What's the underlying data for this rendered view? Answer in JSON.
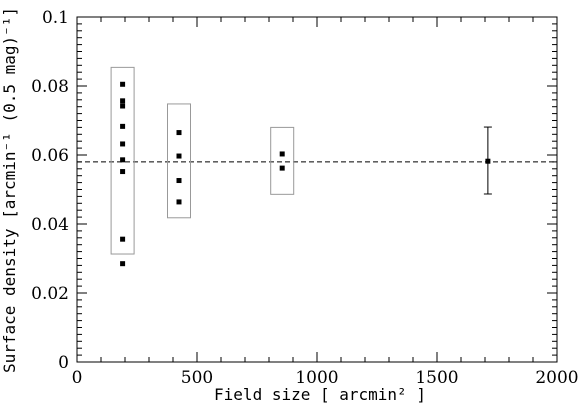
{
  "chart_data": {
    "type": "scatter",
    "xlabel": "Field size  [ arcmin² ]",
    "ylabel": "Surface density  [arcmin⁻¹ (0.5 mag)⁻¹]",
    "xlim": [
      0,
      2000
    ],
    "ylim": [
      0,
      0.1
    ],
    "x_ticks": [
      0,
      500,
      1000,
      1500,
      2000
    ],
    "y_ticks": [
      0,
      0.02,
      0.04,
      0.06,
      0.08,
      0.1
    ],
    "x_tick_labels": [
      "0",
      "500",
      "1000",
      "1500",
      "2000"
    ],
    "y_tick_labels": [
      "0",
      "0.02",
      "0.04",
      "0.06",
      "0.08",
      "0.1"
    ],
    "grid": false,
    "reference_line": {
      "y": 0.058,
      "style": "dashed"
    },
    "groups": [
      {
        "x": 190,
        "y": [
          0.0805,
          0.0757,
          0.0742,
          0.0683,
          0.0632,
          0.0586,
          0.0552,
          0.0356,
          0.0285
        ],
        "box": [
          0.0313,
          0.0854
        ]
      },
      {
        "x": 425,
        "y": [
          0.0665,
          0.0597,
          0.0526,
          0.0464
        ],
        "box": [
          0.0418,
          0.0748
        ]
      },
      {
        "x": 855,
        "y": [
          0.0603,
          0.0562
        ],
        "box": [
          0.0486,
          0.068
        ]
      }
    ],
    "error_point": {
      "x": 1712,
      "y": 0.0582,
      "yerr_low": 0.0487,
      "yerr_high": 0.0681
    },
    "colors": {
      "points": "#000000",
      "boxes": "#999999",
      "frame": "#000000"
    }
  }
}
